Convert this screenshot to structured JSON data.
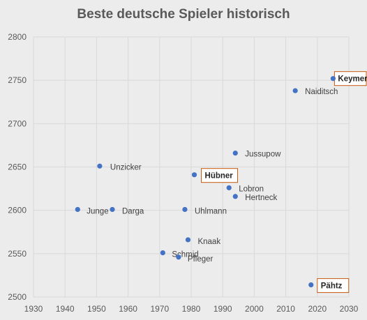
{
  "chart_data": {
    "type": "scatter",
    "title": "Beste deutsche Spieler historisch",
    "xlabel": "",
    "ylabel": "",
    "xlim": [
      1930,
      2030
    ],
    "ylim": [
      2500,
      2800
    ],
    "xticks": [
      1930,
      1940,
      1950,
      1960,
      1970,
      1980,
      1990,
      2000,
      2010,
      2020,
      2030
    ],
    "yticks": [
      2500,
      2550,
      2600,
      2650,
      2700,
      2750,
      2800
    ],
    "grid": true,
    "colors": {
      "marker": "#4472c4",
      "highlight_border": "#c55a11",
      "grid": "#d9d9d9"
    },
    "points": [
      {
        "label": "Keymer",
        "x": 2025,
        "y": 2752,
        "highlight": true
      },
      {
        "label": "Naiditsch",
        "x": 2013,
        "y": 2738,
        "highlight": false
      },
      {
        "label": "Jussupow",
        "x": 1994,
        "y": 2666,
        "highlight": false
      },
      {
        "label": "Unzicker",
        "x": 1951,
        "y": 2651,
        "highlight": false
      },
      {
        "label": "Hübner",
        "x": 1981,
        "y": 2641,
        "highlight": true
      },
      {
        "label": "Lobron",
        "x": 1992,
        "y": 2626,
        "highlight": false
      },
      {
        "label": "Hertneck",
        "x": 1994,
        "y": 2616,
        "highlight": false
      },
      {
        "label": "Junge",
        "x": 1944,
        "y": 2601,
        "highlight": false
      },
      {
        "label": "Darga",
        "x": 1955,
        "y": 2601,
        "highlight": false
      },
      {
        "label": "Uhlmann",
        "x": 1978,
        "y": 2601,
        "highlight": false
      },
      {
        "label": "Knaak",
        "x": 1979,
        "y": 2566,
        "highlight": false
      },
      {
        "label": "Schmid",
        "x": 1971,
        "y": 2551,
        "highlight": false
      },
      {
        "label": "Pfleger",
        "x": 1976,
        "y": 2546,
        "highlight": false
      },
      {
        "label": "Pähtz",
        "x": 2018,
        "y": 2514,
        "highlight": true
      }
    ]
  }
}
